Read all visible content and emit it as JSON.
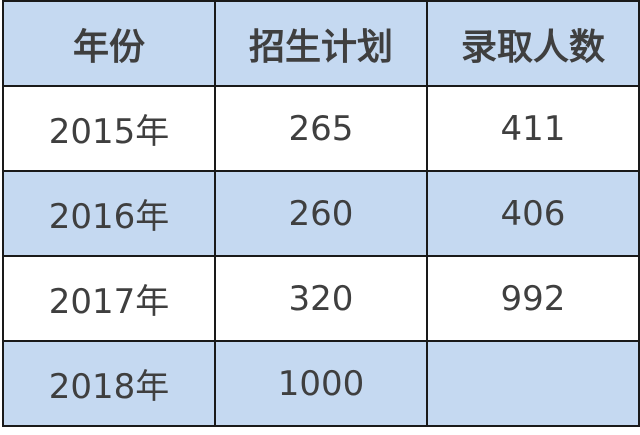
{
  "table": {
    "headers": [
      "年份",
      "招生计划",
      "录取人数"
    ],
    "rows": [
      [
        "2015年",
        "265",
        "411"
      ],
      [
        "2016年",
        "260",
        "406"
      ],
      [
        "2017年",
        "320",
        "992"
      ],
      [
        "2018年",
        "1000",
        ""
      ]
    ]
  },
  "colors": {
    "header_bg": "#c5d9f1",
    "stripe_bg": "#c5d9f1",
    "text": "#3f3f3f",
    "border": "#1a1a1a"
  }
}
